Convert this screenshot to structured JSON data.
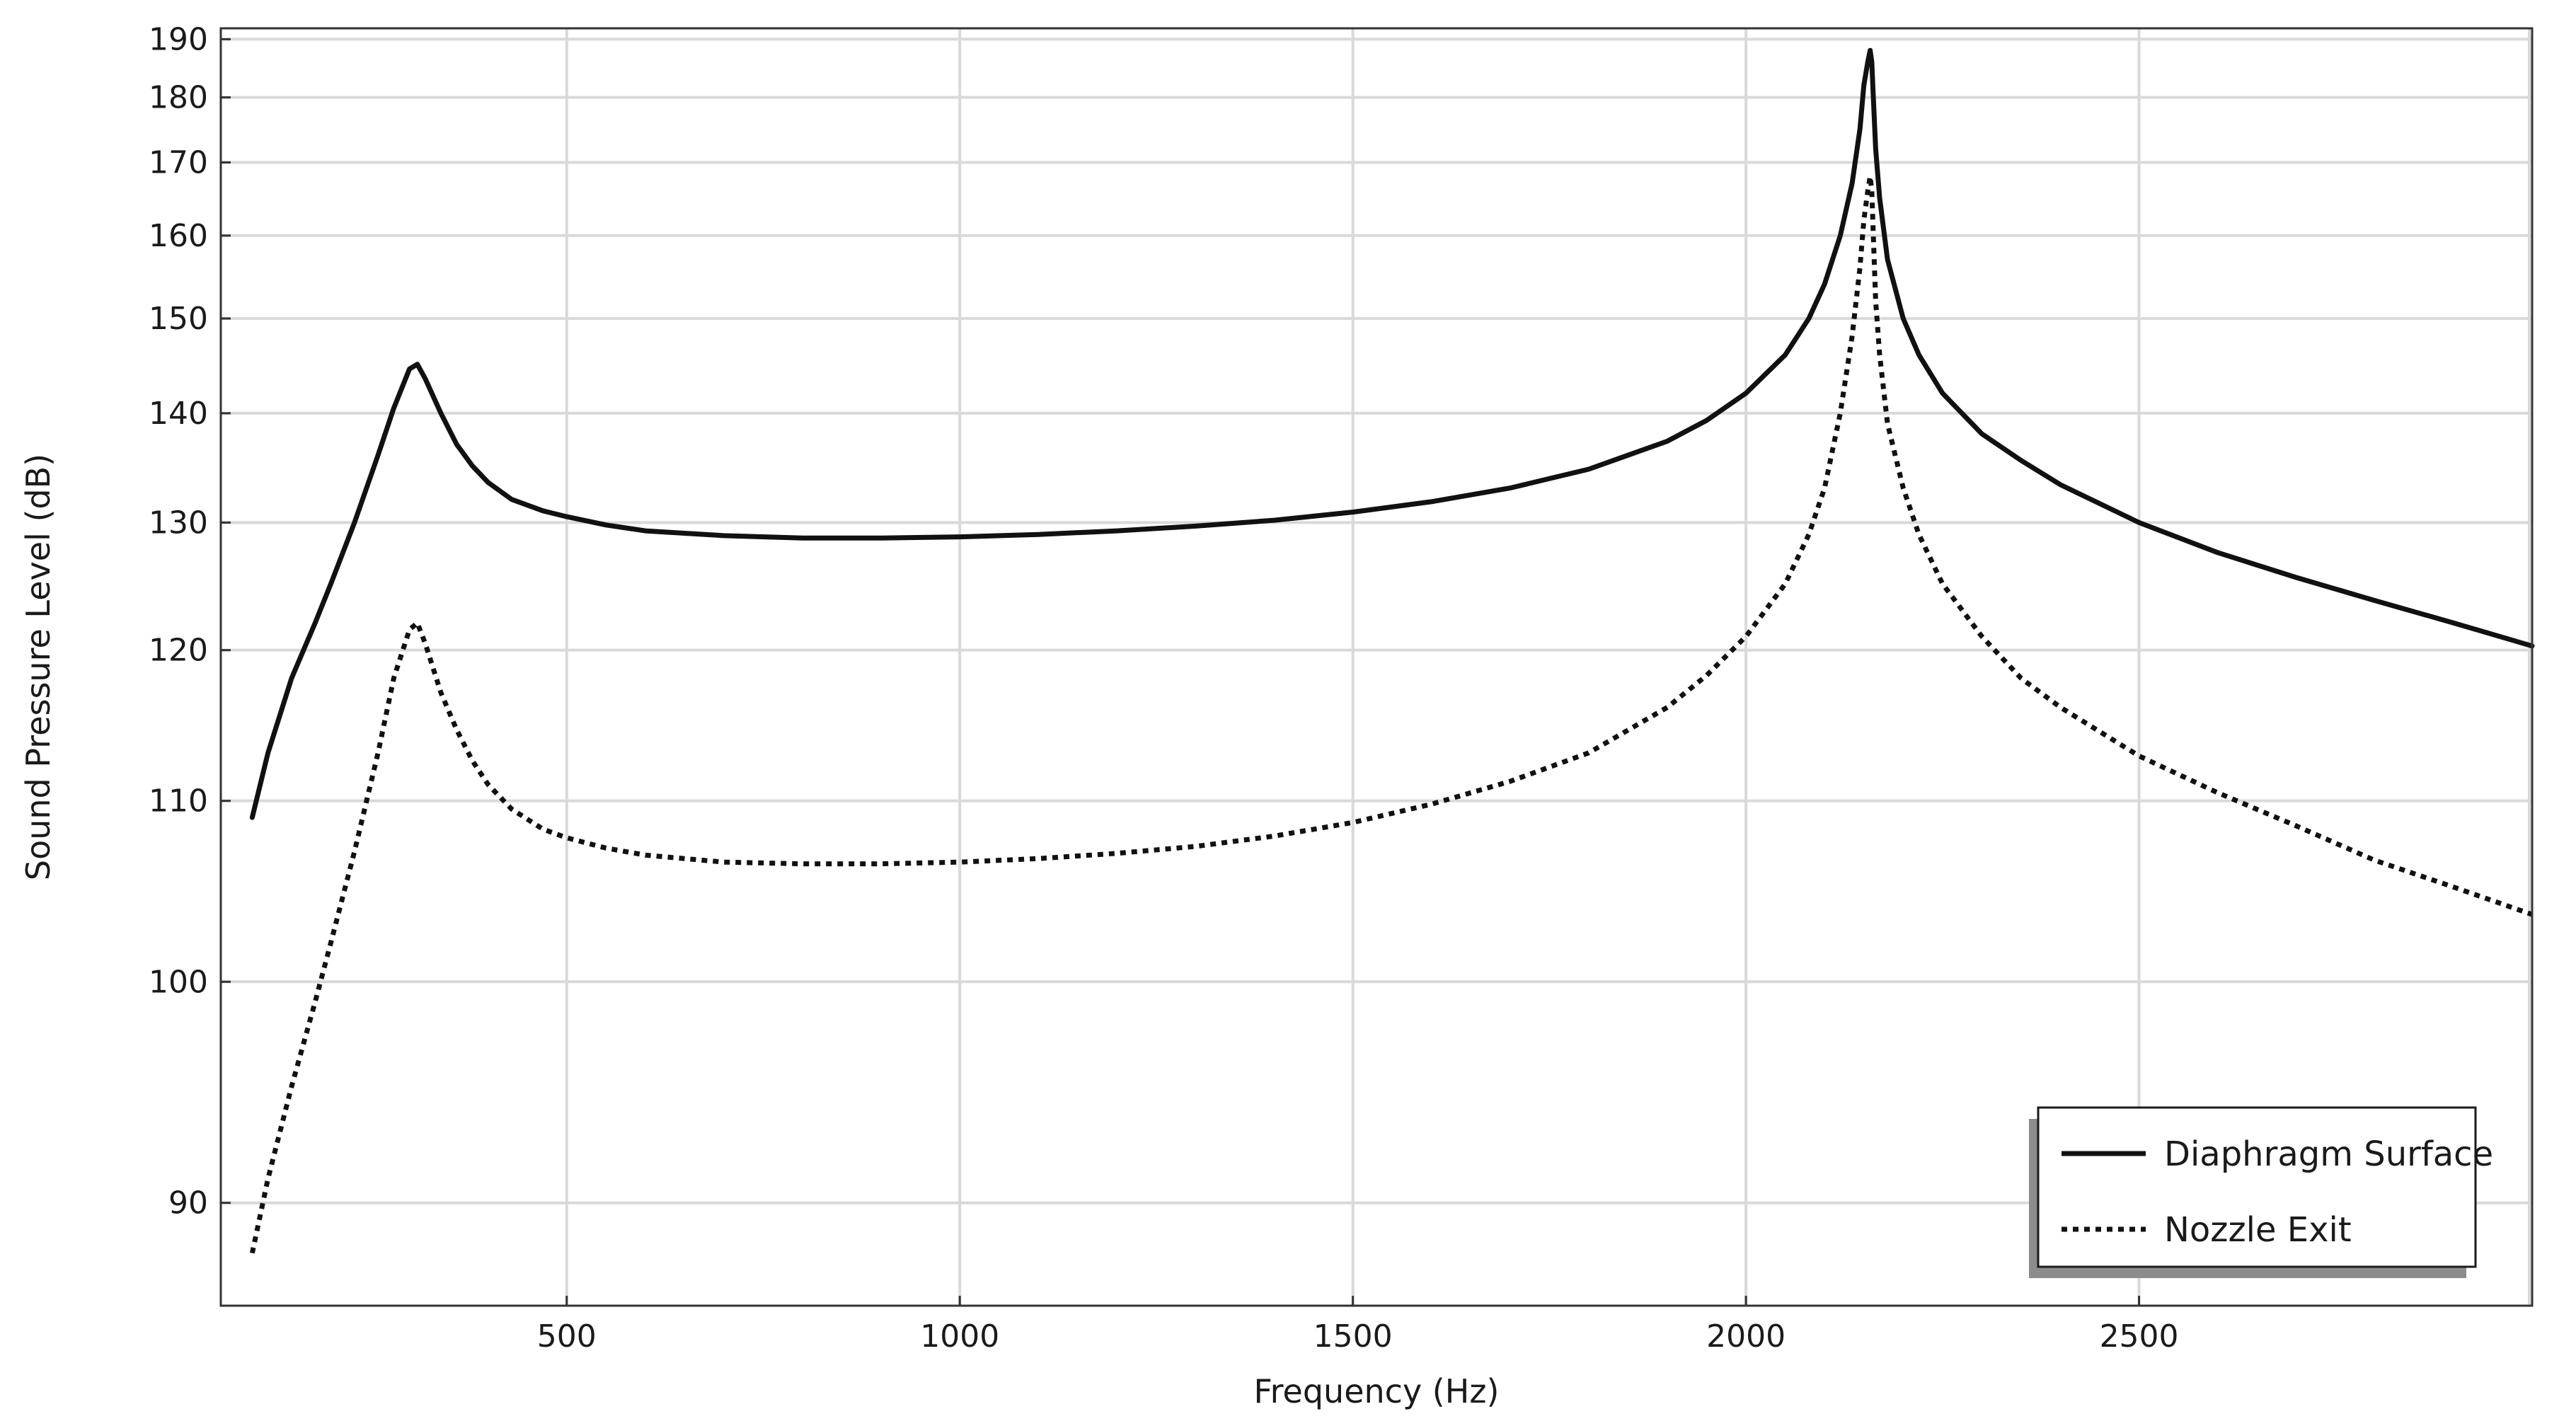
{
  "chart_data": {
    "type": "line",
    "title": "",
    "xlabel": "Frequency (Hz)",
    "ylabel": "Sound Pressure Level (dB)",
    "xlim": [
      60,
      3000
    ],
    "ylim": [
      86,
      192
    ],
    "y_scale": "reciprocal",
    "grid": true,
    "legend_position": "bottom-right",
    "x_ticks": [
      500,
      1000,
      1500,
      2000,
      2500
    ],
    "x_tick_labels": [
      "500",
      "1000",
      "1500",
      "2000",
      "2500"
    ],
    "y_ticks": [
      90,
      100,
      110,
      120,
      130,
      140,
      150,
      160,
      170,
      180,
      190
    ],
    "y_tick_labels": [
      "90",
      "100",
      "110",
      "120",
      "130",
      "140",
      "150",
      "160",
      "170",
      "180",
      "190"
    ],
    "series": [
      {
        "name": "Diaphragm Surface",
        "style": "solid",
        "color": "#111111",
        "x": [
          100,
          120,
          150,
          180,
          200,
          230,
          260,
          280,
          300,
          310,
          320,
          340,
          360,
          380,
          400,
          430,
          470,
          500,
          550,
          600,
          700,
          800,
          900,
          1000,
          1100,
          1200,
          1300,
          1400,
          1500,
          1600,
          1700,
          1800,
          1900,
          1950,
          2000,
          2050,
          2080,
          2100,
          2120,
          2135,
          2145,
          2150,
          2155,
          2158,
          2160,
          2162,
          2165,
          2170,
          2180,
          2200,
          2220,
          2250,
          2300,
          2350,
          2400,
          2500,
          2600,
          2700,
          2800,
          2900,
          3000
        ],
        "y": [
          109,
          113,
          118,
          122,
          125,
          130,
          136,
          140.5,
          144.5,
          145,
          143.5,
          140,
          137,
          135,
          133.5,
          132,
          131,
          130.5,
          129.8,
          129.3,
          128.9,
          128.7,
          128.7,
          128.8,
          129,
          129.3,
          129.7,
          130.2,
          130.9,
          131.8,
          133,
          134.7,
          137.3,
          139.3,
          142,
          146,
          150,
          154,
          160,
          167,
          175,
          182,
          186,
          188,
          186,
          180,
          172,
          165,
          157,
          150,
          146,
          142,
          138,
          135.5,
          133.3,
          130,
          127.5,
          125.5,
          123.7,
          122,
          120.3
        ]
      },
      {
        "name": "Nozzle Exit",
        "style": "dotted",
        "color": "#111111",
        "x": [
          100,
          120,
          150,
          180,
          200,
          230,
          260,
          280,
          300,
          310,
          320,
          340,
          360,
          380,
          400,
          430,
          470,
          500,
          550,
          600,
          700,
          800,
          900,
          1000,
          1100,
          1200,
          1300,
          1400,
          1500,
          1600,
          1700,
          1800,
          1900,
          1950,
          2000,
          2050,
          2080,
          2100,
          2120,
          2135,
          2145,
          2150,
          2155,
          2158,
          2160,
          2162,
          2165,
          2170,
          2180,
          2200,
          2220,
          2250,
          2300,
          2350,
          2400,
          2500,
          2600,
          2700,
          2800,
          2900,
          3000
        ],
        "y": [
          88,
          91,
          95,
          99,
          102,
          107,
          113,
          118,
          121.5,
          122,
          120.5,
          117,
          114.5,
          112.5,
          111,
          109.5,
          108.3,
          107.8,
          107.2,
          106.8,
          106.4,
          106.3,
          106.3,
          106.4,
          106.6,
          106.9,
          107.3,
          107.9,
          108.7,
          109.8,
          111.2,
          113,
          116,
          118.2,
          121,
          125,
          129,
          133,
          140,
          148,
          156,
          162,
          166,
          168,
          166,
          160,
          152,
          146,
          139,
          133,
          129,
          125,
          121,
          118,
          116,
          112.8,
          110.5,
          108.5,
          106.5,
          105,
          103.5
        ]
      }
    ]
  }
}
